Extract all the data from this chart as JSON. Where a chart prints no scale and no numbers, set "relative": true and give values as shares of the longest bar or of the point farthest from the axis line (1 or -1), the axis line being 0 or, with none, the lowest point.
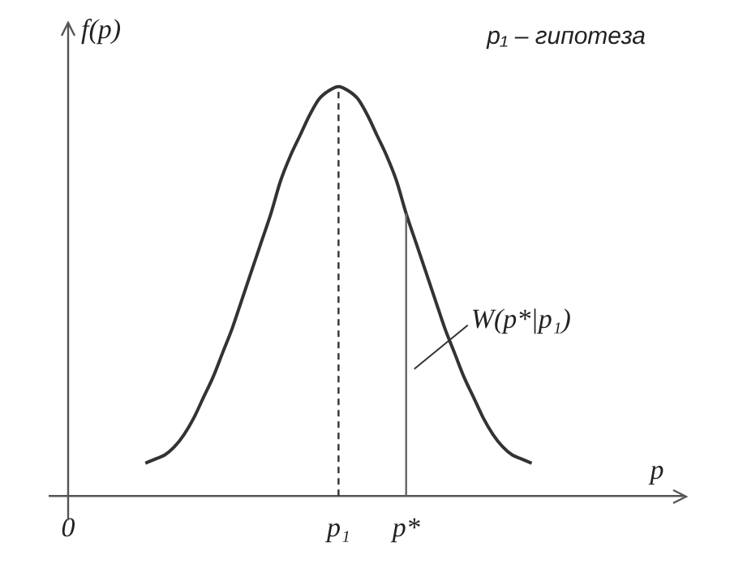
{
  "chart_data": {
    "type": "line",
    "relative": true,
    "xlabel": "p",
    "ylabel": "f(p)",
    "legend": false,
    "grid": false,
    "marker": "none",
    "line_style": "solid",
    "categories": [
      "0",
      null,
      null,
      null,
      null,
      null,
      null,
      null,
      null,
      null,
      null,
      null,
      null,
      null,
      null,
      null,
      null,
      null,
      null,
      null,
      null,
      null,
      null,
      null,
      null,
      null,
      null,
      null,
      "p₁",
      null,
      null,
      null,
      null,
      null,
      null,
      "p*",
      null,
      null,
      null,
      null,
      null,
      null,
      null,
      null,
      null,
      null,
      null,
      null,
      null,
      null,
      null,
      null,
      null,
      null,
      null,
      null,
      null,
      null,
      null,
      null,
      null,
      null,
      null,
      null,
      null
    ],
    "series": [
      {
        "color": "#333333",
        "values": [
          null,
          null,
          null,
          null,
          null,
          null,
          null,
          null,
          0.08,
          0.09,
          0.1,
          0.12,
          0.15,
          0.19,
          0.24,
          0.29,
          0.35,
          0.41,
          0.48,
          0.55,
          0.62,
          0.69,
          0.77,
          0.83,
          0.88,
          0.93,
          0.97,
          0.99,
          1,
          0.99,
          0.97,
          0.93,
          0.88,
          0.83,
          0.77,
          0.69,
          0.62,
          0.55,
          0.48,
          0.41,
          0.35,
          0.29,
          0.24,
          0.19,
          0.15,
          0.12,
          0.1,
          0.09,
          0.08,
          null,
          null,
          null,
          null,
          null,
          null,
          null,
          null,
          null,
          null,
          null,
          null,
          null,
          null,
          null,
          null
        ]
      }
    ],
    "ref_lines": [
      {
        "axis": "x",
        "value": "p₁",
        "line_style": "dashed",
        "color": "#333333"
      },
      {
        "axis": "x",
        "value": "p*",
        "line_style": "solid",
        "color": "#666666"
      }
    ],
    "annotations": [
      "p₁ – гипотеза",
      {
        "text": "W(p*|p₁)",
        "x": "p*",
        "y": 0.31
      }
    ]
  }
}
